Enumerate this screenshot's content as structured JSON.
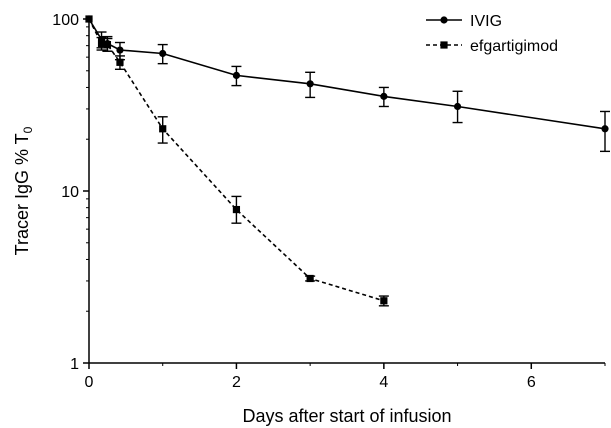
{
  "chart_data": {
    "type": "line",
    "xlabel": "Days after start of infusion",
    "ylabel": "Tracer IgG % T",
    "ylabel_subscript": "0",
    "xlim": [
      0,
      7
    ],
    "ylim": [
      1,
      100
    ],
    "yscale": "log",
    "x_ticks": [
      0,
      2,
      4,
      6
    ],
    "x_tick_labels": [
      "0",
      "2",
      "4",
      "6"
    ],
    "y_ticks": [
      1,
      10,
      100
    ],
    "y_tick_labels": [
      "1",
      "10",
      "100"
    ],
    "grid": false,
    "legend_position": "top-right",
    "series": [
      {
        "name": "IVIG",
        "line_style": "solid",
        "marker": "circle",
        "x": [
          0,
          0.17,
          0.25,
          0.42,
          1,
          2,
          3,
          4,
          5,
          7
        ],
        "y": [
          100,
          76,
          72,
          66,
          63,
          47,
          42,
          35.5,
          31,
          23
        ],
        "err_low": [
          100,
          68,
          65,
          58,
          55,
          41,
          35,
          31,
          25,
          17
        ],
        "err_high": [
          100,
          84,
          79,
          73,
          71,
          53,
          49,
          40,
          38,
          29
        ]
      },
      {
        "name": "efgartigimod",
        "line_style": "dashed",
        "marker": "square",
        "x": [
          0,
          0.17,
          0.25,
          0.42,
          1,
          2,
          3,
          4
        ],
        "y": [
          100,
          72,
          71,
          56,
          23,
          7.8,
          3.1,
          2.3
        ],
        "err_low": [
          100,
          66,
          65,
          51,
          19,
          6.5,
          3.0,
          2.15
        ],
        "err_high": [
          100,
          78,
          77,
          61,
          27,
          9.3,
          3.2,
          2.45
        ]
      }
    ]
  }
}
